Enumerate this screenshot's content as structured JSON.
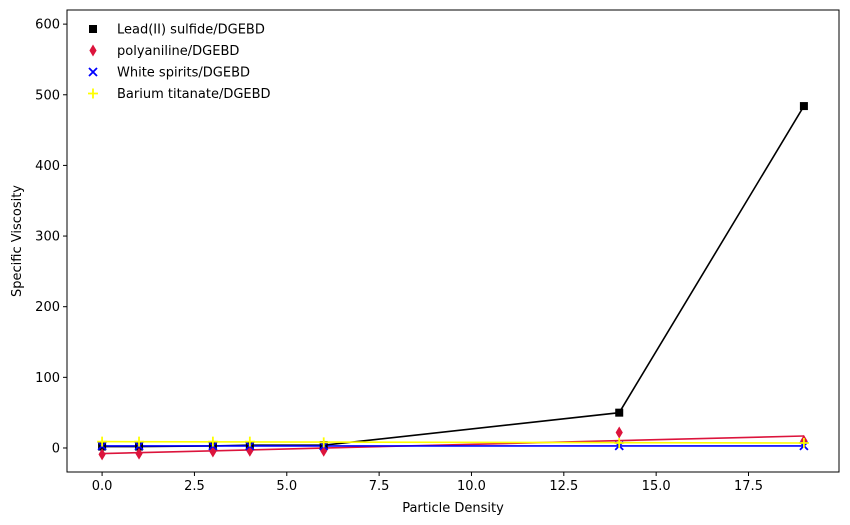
{
  "chart_data": {
    "type": "scatter",
    "xlabel": "Particle Density",
    "ylabel": "Specific Viscosity",
    "xlim": [
      -0.95,
      19.95
    ],
    "ylim": [
      -34,
      620
    ],
    "xticks": [
      0.0,
      2.5,
      5.0,
      7.5,
      10.0,
      12.5,
      15.0,
      17.5
    ],
    "xtick_labels": [
      "0.0",
      "2.5",
      "5.0",
      "7.5",
      "10.0",
      "12.5",
      "15.0",
      "17.5"
    ],
    "yticks": [
      0,
      100,
      200,
      300,
      400,
      500,
      600
    ],
    "ytick_labels": [
      "0",
      "100",
      "200",
      "300",
      "400",
      "500",
      "600"
    ],
    "grid": false,
    "legend_position": "top-left",
    "series": [
      {
        "name": "Lead(II) sulfide/DGEBD",
        "marker": "square",
        "color": "#000000",
        "points": [
          [
            0,
            2
          ],
          [
            1,
            2
          ],
          [
            3,
            3
          ],
          [
            4,
            4
          ],
          [
            6,
            4
          ],
          [
            14,
            50
          ],
          [
            19,
            484
          ]
        ],
        "line": [
          [
            0,
            2
          ],
          [
            1,
            2
          ],
          [
            3,
            3
          ],
          [
            4,
            4
          ],
          [
            6,
            4
          ],
          [
            14,
            50
          ],
          [
            19,
            484
          ]
        ]
      },
      {
        "name": "polyaniline/DGEBD",
        "marker": "thin_diamond",
        "color": "#dc143c",
        "points": [
          [
            0,
            -9
          ],
          [
            1,
            -8
          ],
          [
            3,
            -5
          ],
          [
            4,
            -4
          ],
          [
            6,
            -4
          ],
          [
            14,
            22
          ],
          [
            19,
            10
          ]
        ],
        "line": [
          [
            0,
            -8
          ],
          [
            19,
            17
          ]
        ]
      },
      {
        "name": "White spirits/DGEBD",
        "marker": "x",
        "color": "#0000ff",
        "points": [
          [
            0,
            3
          ],
          [
            1,
            3
          ],
          [
            3,
            3
          ],
          [
            4,
            3
          ],
          [
            6,
            3
          ],
          [
            14,
            3
          ],
          [
            19,
            3
          ]
        ],
        "line": [
          [
            0,
            3
          ],
          [
            19,
            3
          ]
        ]
      },
      {
        "name": "Barium titanate/DGEBD",
        "marker": "plus",
        "color": "#ffff00",
        "points": [
          [
            0,
            9
          ],
          [
            1,
            9
          ],
          [
            3,
            9
          ],
          [
            4,
            9
          ],
          [
            6,
            8
          ],
          [
            14,
            7
          ],
          [
            19,
            7
          ]
        ],
        "line": [
          [
            0,
            9
          ],
          [
            19,
            7
          ]
        ]
      }
    ]
  }
}
